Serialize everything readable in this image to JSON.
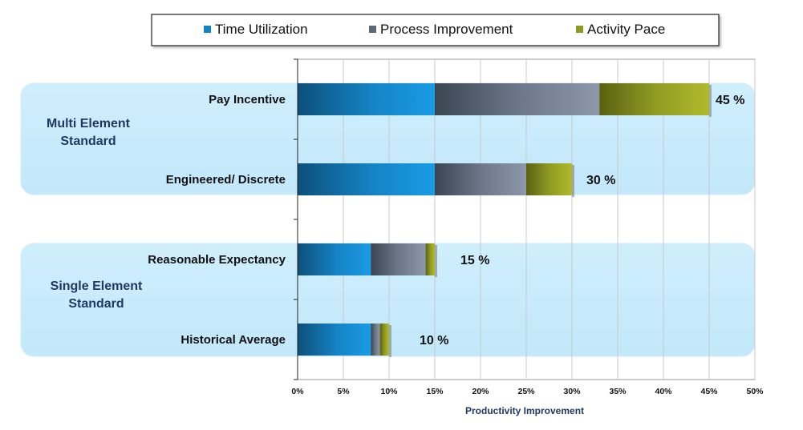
{
  "chart_data": {
    "type": "bar",
    "orientation": "horizontal",
    "stacked": true,
    "xlabel": "Productivity Improvement",
    "xlim": [
      0,
      50
    ],
    "x_ticks": [
      "0%",
      "5%",
      "10%",
      "15%",
      "20%",
      "25%",
      "30%",
      "35%",
      "40%",
      "45%",
      "50%"
    ],
    "grid": true,
    "legend_position": "top",
    "categories": [
      "Pay Incentive",
      "Engineered/ Discrete",
      "Reasonable Expectancy",
      "Historical Average"
    ],
    "series": [
      {
        "name": "Time Utilization",
        "values": [
          15,
          15,
          8,
          8
        ]
      },
      {
        "name": "Process Improvement",
        "values": [
          18,
          10,
          6,
          1
        ]
      },
      {
        "name": "Activity Pace",
        "values": [
          12,
          5,
          1,
          1
        ]
      }
    ],
    "data_labels": [
      "45 %",
      "30 %",
      "15 %",
      "10 %"
    ],
    "groups": [
      {
        "label_line1": "Multi Element",
        "label_line2": "Standard",
        "categories": [
          "Pay Incentive",
          "Engineered/ Discrete"
        ]
      },
      {
        "label_line1": "Single Element",
        "label_line2": "Standard",
        "categories": [
          "Reasonable Expectancy",
          "Historical Average"
        ]
      }
    ]
  }
}
